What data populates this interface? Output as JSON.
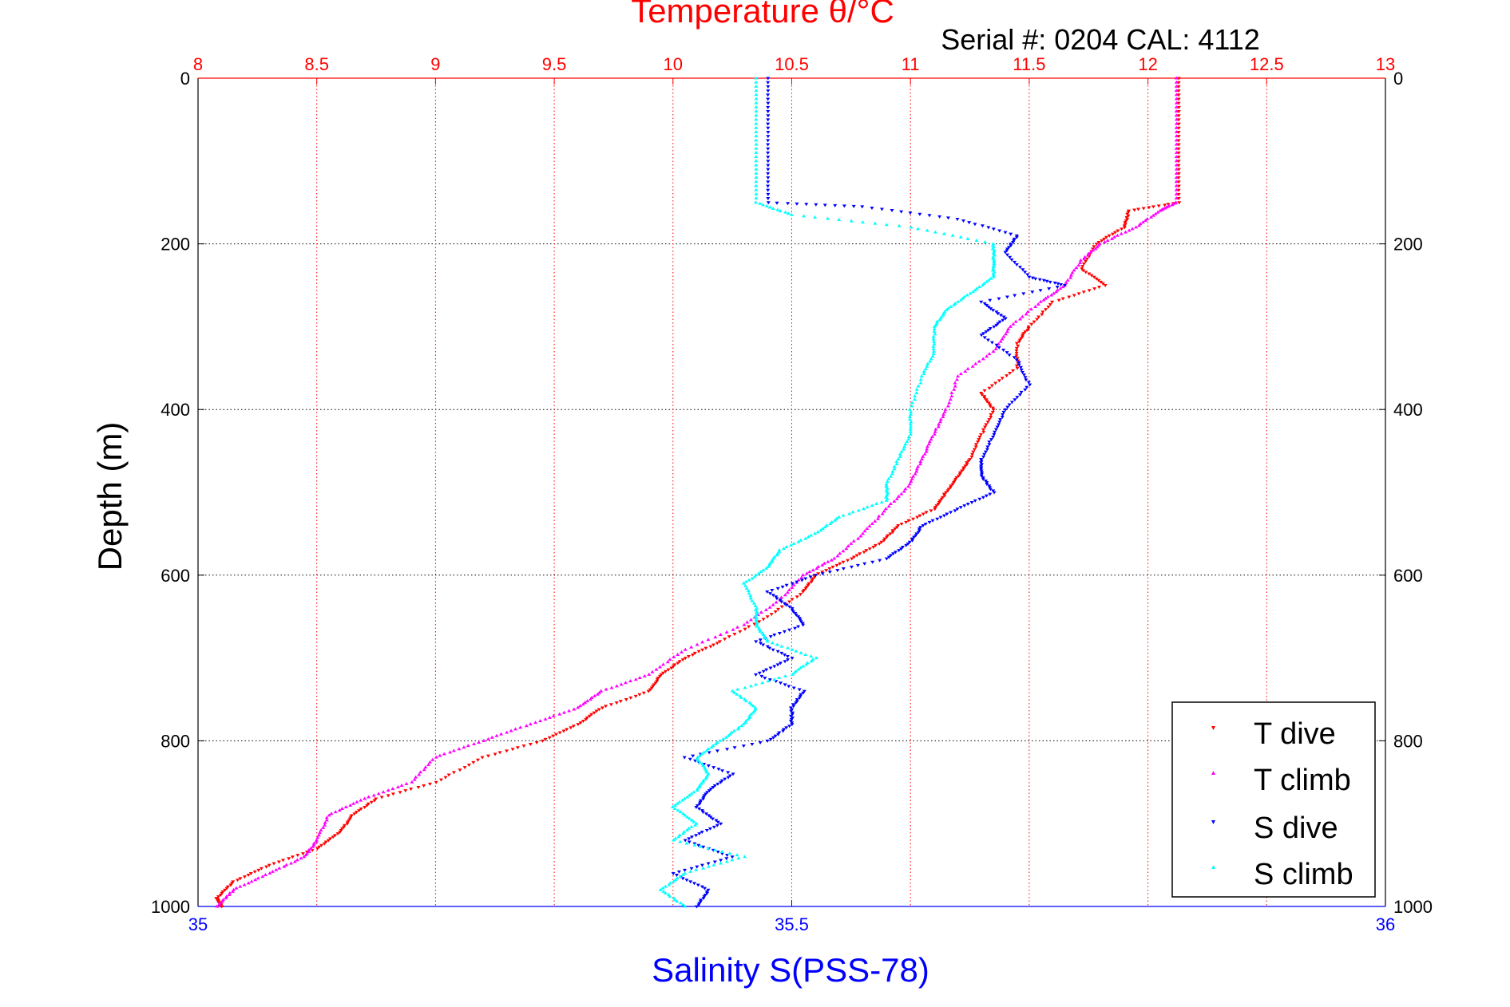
{
  "figure": {
    "top_title": "Temperature θ/°C",
    "subtitle": "Serial #: 0204  CAL: 4112",
    "y_label": "Depth (m)",
    "bottom_title": "Salinity S(PSS-78)"
  },
  "colors": {
    "temperature_axis": "#ff0000",
    "salinity_axis": "#0000ff",
    "t_dive": "#ff0000",
    "t_climb": "#ff00ff",
    "s_dive": "#0000ff",
    "s_climb": "#00ffff",
    "grid_black": "#000000",
    "grid_red": "#ff0000"
  },
  "chart_data": {
    "type": "scatter",
    "y": {
      "label": "Depth (m)",
      "range": [
        0,
        1000
      ],
      "reversed": true,
      "ticks": [
        0,
        200,
        400,
        600,
        800,
        1000
      ]
    },
    "x_top": {
      "label": "Temperature θ/°C",
      "range": [
        8,
        13
      ],
      "ticks": [
        8,
        8.5,
        9,
        9.5,
        10,
        10.5,
        11,
        11.5,
        12,
        12.5,
        13
      ]
    },
    "x_bottom": {
      "label": "Salinity S(PSS-78)",
      "range": [
        35,
        36
      ],
      "ticks": [
        35,
        35.5,
        36
      ]
    },
    "grid": true,
    "legend_position": "bottom-right",
    "series": [
      {
        "name": "T dive",
        "axis": "temperature",
        "marker": "triangle-down",
        "points": [
          [
            0,
            12.13
          ],
          [
            50,
            12.13
          ],
          [
            100,
            12.13
          ],
          [
            150,
            12.13
          ],
          [
            160,
            11.92
          ],
          [
            180,
            11.9
          ],
          [
            200,
            11.78
          ],
          [
            230,
            11.72
          ],
          [
            250,
            11.82
          ],
          [
            270,
            11.6
          ],
          [
            300,
            11.5
          ],
          [
            320,
            11.45
          ],
          [
            350,
            11.45
          ],
          [
            380,
            11.3
          ],
          [
            400,
            11.35
          ],
          [
            430,
            11.3
          ],
          [
            460,
            11.25
          ],
          [
            480,
            11.2
          ],
          [
            500,
            11.15
          ],
          [
            520,
            11.1
          ],
          [
            540,
            10.95
          ],
          [
            560,
            10.88
          ],
          [
            580,
            10.75
          ],
          [
            600,
            10.6
          ],
          [
            620,
            10.55
          ],
          [
            650,
            10.4
          ],
          [
            680,
            10.2
          ],
          [
            700,
            10.05
          ],
          [
            720,
            9.95
          ],
          [
            740,
            9.9
          ],
          [
            760,
            9.7
          ],
          [
            780,
            9.6
          ],
          [
            800,
            9.45
          ],
          [
            820,
            9.2
          ],
          [
            850,
            9.0
          ],
          [
            870,
            8.75
          ],
          [
            890,
            8.65
          ],
          [
            910,
            8.6
          ],
          [
            930,
            8.5
          ],
          [
            950,
            8.3
          ],
          [
            970,
            8.15
          ],
          [
            990,
            8.08
          ],
          [
            1000,
            8.1
          ]
        ]
      },
      {
        "name": "T climb",
        "axis": "temperature",
        "marker": "triangle-up",
        "points": [
          [
            0,
            12.12
          ],
          [
            50,
            12.12
          ],
          [
            100,
            12.12
          ],
          [
            150,
            12.12
          ],
          [
            160,
            12.05
          ],
          [
            180,
            11.95
          ],
          [
            200,
            11.8
          ],
          [
            220,
            11.72
          ],
          [
            250,
            11.65
          ],
          [
            270,
            11.55
          ],
          [
            300,
            11.42
          ],
          [
            330,
            11.35
          ],
          [
            360,
            11.2
          ],
          [
            400,
            11.15
          ],
          [
            430,
            11.1
          ],
          [
            460,
            11.05
          ],
          [
            490,
            11.0
          ],
          [
            520,
            10.9
          ],
          [
            550,
            10.8
          ],
          [
            580,
            10.68
          ],
          [
            600,
            10.55
          ],
          [
            630,
            10.45
          ],
          [
            660,
            10.3
          ],
          [
            690,
            10.05
          ],
          [
            720,
            9.9
          ],
          [
            740,
            9.7
          ],
          [
            760,
            9.6
          ],
          [
            780,
            9.4
          ],
          [
            800,
            9.2
          ],
          [
            820,
            9.0
          ],
          [
            850,
            8.9
          ],
          [
            870,
            8.7
          ],
          [
            890,
            8.55
          ],
          [
            920,
            8.5
          ],
          [
            940,
            8.45
          ],
          [
            960,
            8.3
          ],
          [
            980,
            8.15
          ],
          [
            1000,
            8.08
          ]
        ]
      },
      {
        "name": "S dive",
        "axis": "salinity",
        "marker": "triangle-down",
        "points": [
          [
            0,
            35.48
          ],
          [
            50,
            35.48
          ],
          [
            100,
            35.48
          ],
          [
            150,
            35.48
          ],
          [
            155,
            35.56
          ],
          [
            170,
            35.64
          ],
          [
            190,
            35.69
          ],
          [
            210,
            35.68
          ],
          [
            240,
            35.7
          ],
          [
            250,
            35.73
          ],
          [
            270,
            35.66
          ],
          [
            290,
            35.68
          ],
          [
            310,
            35.66
          ],
          [
            340,
            35.69
          ],
          [
            370,
            35.7
          ],
          [
            400,
            35.68
          ],
          [
            430,
            35.67
          ],
          [
            460,
            35.66
          ],
          [
            480,
            35.66
          ],
          [
            500,
            35.67
          ],
          [
            520,
            35.64
          ],
          [
            540,
            35.61
          ],
          [
            560,
            35.6
          ],
          [
            580,
            35.58
          ],
          [
            600,
            35.52
          ],
          [
            620,
            35.48
          ],
          [
            640,
            35.5
          ],
          [
            660,
            35.51
          ],
          [
            680,
            35.47
          ],
          [
            700,
            35.5
          ],
          [
            720,
            35.47
          ],
          [
            740,
            35.51
          ],
          [
            760,
            35.5
          ],
          [
            780,
            35.5
          ],
          [
            800,
            35.48
          ],
          [
            820,
            35.41
          ],
          [
            840,
            35.45
          ],
          [
            860,
            35.43
          ],
          [
            880,
            35.42
          ],
          [
            900,
            35.44
          ],
          [
            920,
            35.41
          ],
          [
            940,
            35.45
          ],
          [
            960,
            35.4
          ],
          [
            980,
            35.43
          ],
          [
            1000,
            35.42
          ]
        ]
      },
      {
        "name": "S climb",
        "axis": "salinity",
        "marker": "triangle-up",
        "points": [
          [
            0,
            35.47
          ],
          [
            50,
            35.47
          ],
          [
            100,
            35.47
          ],
          [
            150,
            35.47
          ],
          [
            165,
            35.5
          ],
          [
            180,
            35.6
          ],
          [
            200,
            35.67
          ],
          [
            220,
            35.67
          ],
          [
            240,
            35.67
          ],
          [
            260,
            35.65
          ],
          [
            280,
            35.63
          ],
          [
            300,
            35.62
          ],
          [
            330,
            35.62
          ],
          [
            360,
            35.61
          ],
          [
            400,
            35.6
          ],
          [
            430,
            35.6
          ],
          [
            460,
            35.59
          ],
          [
            490,
            35.58
          ],
          [
            510,
            35.58
          ],
          [
            530,
            35.54
          ],
          [
            550,
            35.52
          ],
          [
            570,
            35.49
          ],
          [
            590,
            35.48
          ],
          [
            610,
            35.46
          ],
          [
            640,
            35.47
          ],
          [
            660,
            35.47
          ],
          [
            680,
            35.48
          ],
          [
            700,
            35.52
          ],
          [
            720,
            35.5
          ],
          [
            740,
            35.45
          ],
          [
            760,
            35.47
          ],
          [
            780,
            35.46
          ],
          [
            800,
            35.44
          ],
          [
            820,
            35.42
          ],
          [
            840,
            35.43
          ],
          [
            860,
            35.42
          ],
          [
            880,
            35.4
          ],
          [
            900,
            35.42
          ],
          [
            920,
            35.4
          ],
          [
            940,
            35.46
          ],
          [
            960,
            35.41
          ],
          [
            980,
            35.39
          ],
          [
            1000,
            35.41
          ]
        ]
      }
    ]
  }
}
